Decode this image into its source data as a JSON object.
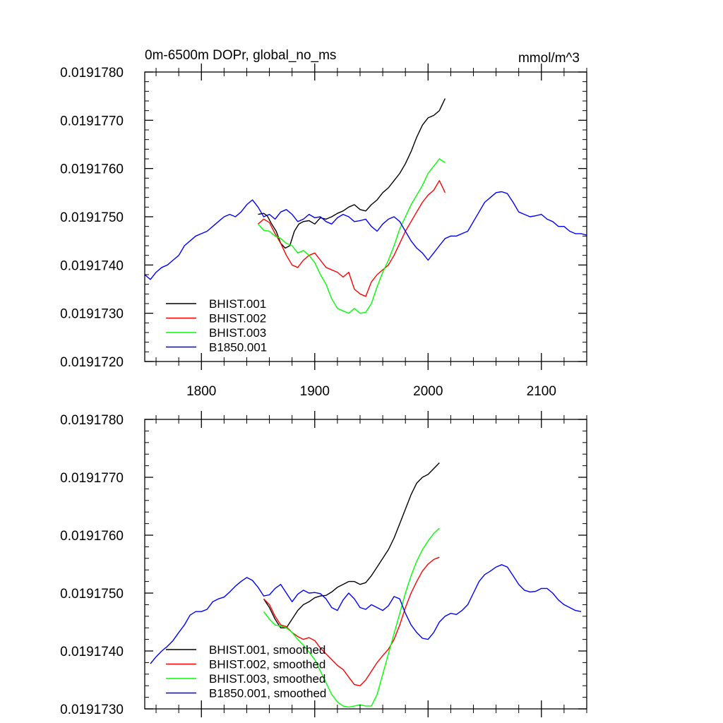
{
  "chart_data": [
    {
      "type": "line",
      "title_left": "0m-6500m DOPr, global_no_ms",
      "title_right": "mmol/m^3",
      "xlim": [
        1750,
        2140
      ],
      "ylim": [
        0.019172,
        0.019178
      ],
      "x_ticks": [
        1800,
        1900,
        2000,
        2100
      ],
      "x_tick_labels": [
        "1800",
        "1900",
        "2000",
        "2100"
      ],
      "y_ticks": [
        0.019172,
        0.019173,
        0.019174,
        0.019175,
        0.019176,
        0.019177,
        0.019178
      ],
      "y_tick_labels": [
        "0.0191720",
        "0.0191730",
        "0.0191740",
        "0.0191750",
        "0.0191760",
        "0.0191770",
        "0.0191780"
      ],
      "series": [
        {
          "name": "BHIST.001",
          "color": "#000000",
          "x": [
            1850,
            1855,
            1858,
            1862,
            1866,
            1870,
            1874,
            1878,
            1882,
            1886,
            1890,
            1895,
            1900,
            1905,
            1910,
            1915,
            1920,
            1925,
            1930,
            1935,
            1940,
            1945,
            1950,
            1955,
            1960,
            1965,
            1970,
            1975,
            1980,
            1985,
            1990,
            1995,
            2000,
            2005,
            2010,
            2015
          ],
          "y": [
            0.01917505,
            0.01917507,
            0.01917502,
            0.01917485,
            0.0191747,
            0.01917445,
            0.01917435,
            0.0191744,
            0.0191747,
            0.01917485,
            0.0191749,
            0.01917492,
            0.01917485,
            0.01917498,
            0.01917495,
            0.019175,
            0.01917507,
            0.01917512,
            0.0191752,
            0.01917525,
            0.01917515,
            0.01917512,
            0.01917525,
            0.01917535,
            0.0191755,
            0.0191756,
            0.01917575,
            0.0191759,
            0.0191761,
            0.01917635,
            0.01917665,
            0.0191769,
            0.01917705,
            0.0191771,
            0.0191772,
            0.01917745
          ]
        },
        {
          "name": "BHIST.002",
          "color": "#ff0000",
          "x": [
            1850,
            1855,
            1860,
            1865,
            1870,
            1875,
            1880,
            1885,
            1890,
            1895,
            1900,
            1905,
            1910,
            1915,
            1920,
            1925,
            1930,
            1935,
            1940,
            1945,
            1950,
            1955,
            1960,
            1965,
            1970,
            1975,
            1980,
            1985,
            1990,
            1995,
            2000,
            2005,
            2010,
            2015
          ],
          "y": [
            0.01917485,
            0.01917495,
            0.01917488,
            0.01917465,
            0.01917445,
            0.0191742,
            0.019174,
            0.01917395,
            0.0191741,
            0.0191742,
            0.01917425,
            0.0191741,
            0.01917395,
            0.0191739,
            0.01917385,
            0.01917375,
            0.01917385,
            0.0191735,
            0.0191734,
            0.01917335,
            0.01917365,
            0.0191738,
            0.0191739,
            0.019174,
            0.0191742,
            0.01917445,
            0.0191747,
            0.0191749,
            0.0191751,
            0.0191753,
            0.01917545,
            0.01917555,
            0.01917575,
            0.0191755
          ]
        },
        {
          "name": "BHIST.003",
          "color": "#00ff00",
          "x": [
            1850,
            1855,
            1860,
            1865,
            1870,
            1875,
            1880,
            1885,
            1890,
            1895,
            1900,
            1905,
            1910,
            1915,
            1920,
            1925,
            1930,
            1935,
            1940,
            1945,
            1950,
            1955,
            1960,
            1965,
            1970,
            1975,
            1980,
            1985,
            1990,
            1995,
            2000,
            2005,
            2010,
            2015
          ],
          "y": [
            0.01917485,
            0.01917472,
            0.0191747,
            0.0191746,
            0.01917455,
            0.01917445,
            0.0191744,
            0.01917425,
            0.0191743,
            0.0191742,
            0.01917405,
            0.0191738,
            0.0191736,
            0.0191733,
            0.0191731,
            0.01917305,
            0.019173,
            0.0191731,
            0.019173,
            0.01917302,
            0.0191732,
            0.01917355,
            0.01917385,
            0.0191741,
            0.0191744,
            0.01917475,
            0.019175,
            0.01917525,
            0.01917545,
            0.01917565,
            0.0191759,
            0.01917605,
            0.0191762,
            0.01917612
          ]
        },
        {
          "name": "B1850.001",
          "color": "#0000ff",
          "x": [
            1750,
            1755,
            1760,
            1765,
            1770,
            1775,
            1780,
            1785,
            1790,
            1795,
            1800,
            1805,
            1810,
            1815,
            1820,
            1825,
            1830,
            1835,
            1840,
            1845,
            1850,
            1855,
            1860,
            1865,
            1870,
            1875,
            1880,
            1885,
            1890,
            1895,
            1900,
            1905,
            1910,
            1915,
            1920,
            1925,
            1930,
            1935,
            1940,
            1945,
            1950,
            1955,
            1960,
            1965,
            1970,
            1975,
            1980,
            1985,
            1990,
            1995,
            2000,
            2005,
            2010,
            2015,
            2020,
            2025,
            2030,
            2035,
            2040,
            2045,
            2050,
            2055,
            2060,
            2065,
            2070,
            2075,
            2080,
            2085,
            2090,
            2095,
            2100,
            2105,
            2110,
            2115,
            2120,
            2125,
            2130,
            2135,
            2140
          ],
          "y": [
            0.0191738,
            0.0191737,
            0.01917385,
            0.01917395,
            0.019174,
            0.0191741,
            0.0191742,
            0.0191744,
            0.0191745,
            0.0191746,
            0.01917465,
            0.0191747,
            0.0191748,
            0.0191749,
            0.019175,
            0.01917505,
            0.019175,
            0.0191751,
            0.01917525,
            0.01917535,
            0.0191752,
            0.019175,
            0.01917505,
            0.01917495,
            0.0191751,
            0.01917515,
            0.01917505,
            0.0191749,
            0.01917495,
            0.01917505,
            0.01917498,
            0.019175,
            0.0191749,
            0.01917485,
            0.01917498,
            0.01917505,
            0.019175,
            0.0191749,
            0.01917492,
            0.01917495,
            0.0191748,
            0.0191747,
            0.01917485,
            0.01917495,
            0.019175,
            0.0191749,
            0.0191747,
            0.0191745,
            0.01917435,
            0.01917425,
            0.0191741,
            0.01917425,
            0.0191744,
            0.01917455,
            0.0191746,
            0.0191746,
            0.01917465,
            0.0191747,
            0.0191749,
            0.0191751,
            0.0191753,
            0.0191754,
            0.0191755,
            0.01917552,
            0.01917548,
            0.0191753,
            0.0191751,
            0.01917505,
            0.019175,
            0.01917502,
            0.01917505,
            0.01917495,
            0.0191749,
            0.0191748,
            0.0191748,
            0.0191747,
            0.01917465,
            0.01917465,
            0.01917462
          ]
        }
      ]
    },
    {
      "type": "line",
      "xlim": [
        1750,
        2140
      ],
      "ylim": [
        0.019173,
        0.019178
      ],
      "x_ticks": [
        1800,
        1900,
        2000,
        2100
      ],
      "y_ticks": [
        0.019173,
        0.019174,
        0.019175,
        0.019176,
        0.019177,
        0.019178
      ],
      "y_tick_labels": [
        "0.0191730",
        "0.0191740",
        "0.0191750",
        "0.0191760",
        "0.0191770",
        "0.0191780"
      ],
      "series": [
        {
          "name": "BHIST.001, smoothed",
          "color": "#000000",
          "x": [
            1855,
            1860,
            1865,
            1870,
            1875,
            1880,
            1885,
            1890,
            1895,
            1900,
            1905,
            1910,
            1915,
            1920,
            1925,
            1930,
            1935,
            1940,
            1945,
            1950,
            1955,
            1960,
            1965,
            1970,
            1975,
            1980,
            1985,
            1990,
            1995,
            2000,
            2005,
            2010
          ],
          "y": [
            0.0191749,
            0.01917475,
            0.01917455,
            0.0191744,
            0.0191744,
            0.01917455,
            0.0191747,
            0.0191748,
            0.01917485,
            0.01917492,
            0.01917495,
            0.01917496,
            0.01917502,
            0.0191751,
            0.01917515,
            0.0191752,
            0.0191752,
            0.01917515,
            0.01917518,
            0.0191753,
            0.01917545,
            0.0191756,
            0.01917575,
            0.01917595,
            0.0191762,
            0.01917645,
            0.0191767,
            0.0191769,
            0.019177,
            0.01917705,
            0.01917715,
            0.01917725
          ]
        },
        {
          "name": "BHIST.002, smoothed",
          "color": "#ff0000",
          "x": [
            1855,
            1860,
            1865,
            1870,
            1875,
            1880,
            1885,
            1890,
            1895,
            1900,
            1905,
            1910,
            1915,
            1920,
            1925,
            1930,
            1935,
            1940,
            1945,
            1950,
            1955,
            1960,
            1965,
            1970,
            1975,
            1980,
            1985,
            1990,
            1995,
            2000,
            2005,
            2010
          ],
          "y": [
            0.0191749,
            0.0191748,
            0.0191746,
            0.01917445,
            0.01917442,
            0.01917432,
            0.01917425,
            0.0191742,
            0.01917423,
            0.01917418,
            0.01917405,
            0.01917395,
            0.01917385,
            0.01917375,
            0.01917368,
            0.01917355,
            0.01917342,
            0.0191734,
            0.0191735,
            0.01917365,
            0.0191738,
            0.01917392,
            0.01917403,
            0.0191742,
            0.01917445,
            0.01917475,
            0.019175,
            0.0191752,
            0.01917538,
            0.0191755,
            0.01917558,
            0.01917562
          ]
        },
        {
          "name": "BHIST.003, smoothed",
          "color": "#00ff00",
          "x": [
            1855,
            1860,
            1865,
            1870,
            1875,
            1880,
            1885,
            1890,
            1895,
            1900,
            1905,
            1910,
            1915,
            1920,
            1925,
            1930,
            1935,
            1940,
            1945,
            1950,
            1955,
            1960,
            1965,
            1970,
            1975,
            1980,
            1985,
            1990,
            1995,
            2000,
            2005,
            2010
          ],
          "y": [
            0.01917468,
            0.01917455,
            0.01917445,
            0.01917443,
            0.0191744,
            0.01917432,
            0.0191742,
            0.0191741,
            0.01917398,
            0.01917385,
            0.01917365,
            0.01917345,
            0.01917325,
            0.01917312,
            0.01917305,
            0.01917303,
            0.01917305,
            0.01917307,
            0.01917305,
            0.01917305,
            0.01917325,
            0.0191736,
            0.01917395,
            0.0191743,
            0.01917465,
            0.019175,
            0.0191753,
            0.01917555,
            0.01917575,
            0.0191759,
            0.01917603,
            0.01917612
          ]
        },
        {
          "name": "B1850.001, smoothed",
          "color": "#0000ff",
          "x": [
            1755,
            1760,
            1765,
            1770,
            1775,
            1780,
            1785,
            1790,
            1795,
            1800,
            1805,
            1810,
            1815,
            1820,
            1825,
            1830,
            1835,
            1840,
            1845,
            1850,
            1855,
            1860,
            1865,
            1870,
            1875,
            1880,
            1885,
            1890,
            1895,
            1900,
            1905,
            1910,
            1915,
            1920,
            1925,
            1930,
            1935,
            1940,
            1945,
            1950,
            1955,
            1960,
            1965,
            1970,
            1975,
            1980,
            1985,
            1990,
            1995,
            2000,
            2005,
            2010,
            2015,
            2020,
            2025,
            2030,
            2035,
            2040,
            2045,
            2050,
            2055,
            2060,
            2065,
            2070,
            2075,
            2080,
            2085,
            2090,
            2095,
            2100,
            2105,
            2110,
            2115,
            2120,
            2125,
            2130,
            2135
          ],
          "y": [
            0.01917378,
            0.0191739,
            0.019174,
            0.01917408,
            0.01917418,
            0.01917432,
            0.01917445,
            0.01917462,
            0.01917468,
            0.01917468,
            0.01917472,
            0.01917485,
            0.0191749,
            0.01917493,
            0.01917502,
            0.01917512,
            0.0191752,
            0.01917527,
            0.01917522,
            0.0191751,
            0.01917495,
            0.01917497,
            0.01917508,
            0.01917515,
            0.019175,
            0.01917485,
            0.01917498,
            0.01917505,
            0.019175,
            0.01917501,
            0.01917499,
            0.0191749,
            0.01917475,
            0.0191747,
            0.01917488,
            0.019175,
            0.0191749,
            0.01917475,
            0.01917472,
            0.0191748,
            0.01917475,
            0.0191747,
            0.01917478,
            0.01917494,
            0.0191749,
            0.01917465,
            0.01917445,
            0.01917432,
            0.01917422,
            0.0191742,
            0.01917432,
            0.0191745,
            0.0191746,
            0.01917465,
            0.01917463,
            0.0191747,
            0.0191748,
            0.019175,
            0.0191752,
            0.01917532,
            0.01917538,
            0.01917545,
            0.01917549,
            0.01917545,
            0.0191753,
            0.01917515,
            0.01917505,
            0.01917502,
            0.01917503,
            0.01917508,
            0.01917508,
            0.019175,
            0.01917488,
            0.0191748,
            0.01917475,
            0.0191747,
            0.01917468
          ]
        }
      ]
    }
  ]
}
